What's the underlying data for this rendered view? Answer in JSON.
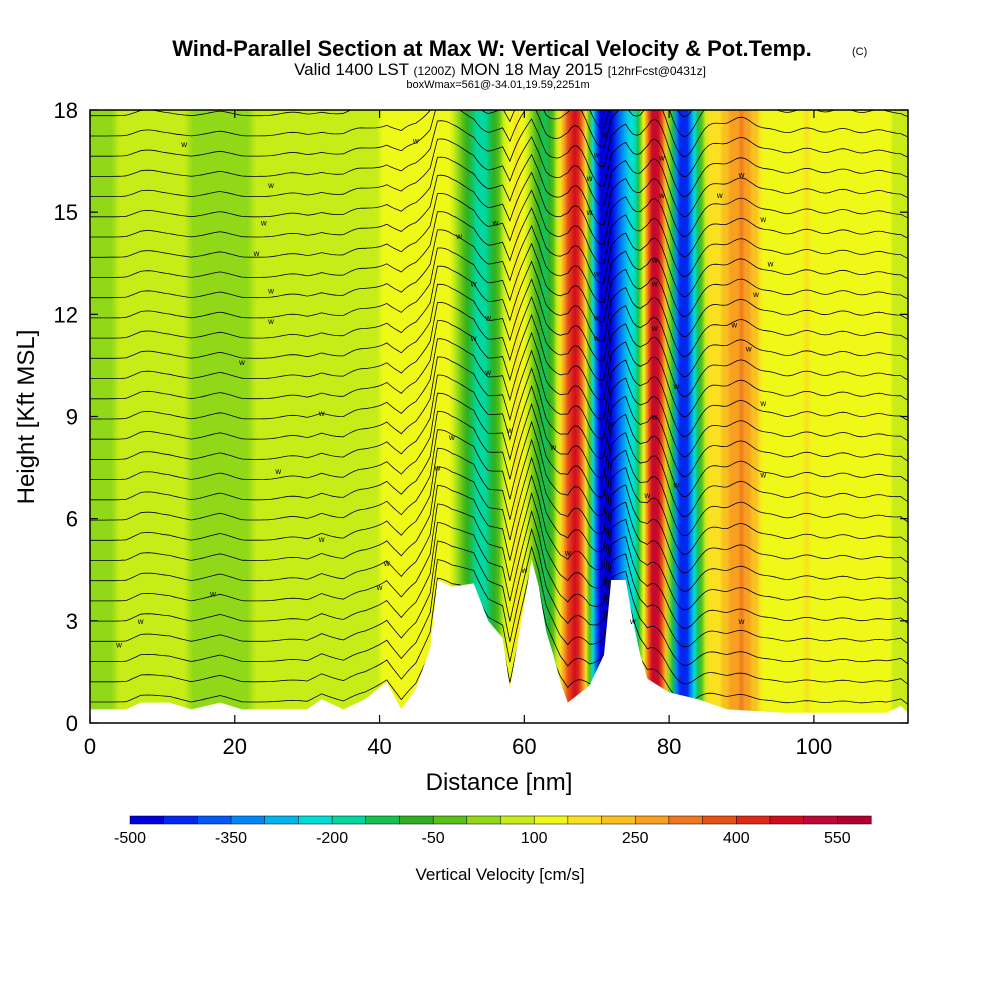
{
  "chart_data": {
    "type": "heatmap",
    "title": "Wind-Parallel Section at Max W: Vertical Velocity & Pot.Temp.",
    "title_copyright": "(C)",
    "subtitle_parts": {
      "valid": "Valid 1400 LST",
      "utc": "(1200Z)",
      "date": "MON 18 May 2015",
      "forecast": "[12hrFcst@0431z]"
    },
    "box_info": "boxWmax=561@-34.01,19.59,2251m",
    "xlabel": "Distance [nm]",
    "ylabel": "Height [Kft MSL]",
    "xlim": [
      0,
      113
    ],
    "ylim": [
      0,
      18
    ],
    "xticks": [
      0,
      20,
      40,
      60,
      80,
      100
    ],
    "yticks": [
      0,
      3,
      6,
      9,
      12,
      15,
      18
    ],
    "colorbar": {
      "label": "Vertical Velocity [cm/s]",
      "min": -500,
      "max": 600,
      "step": 50,
      "tick_values": [
        -500,
        -350,
        -200,
        -50,
        100,
        250,
        400,
        550
      ],
      "tick_labels": [
        "-500",
        "-350",
        "-200",
        "-50",
        "100",
        "250",
        "400",
        "550"
      ],
      "colors": [
        "#0000dd",
        "#0028f0",
        "#0058f8",
        "#0088f8",
        "#00b4ee",
        "#00dcd8",
        "#00d8a0",
        "#18c050",
        "#30b020",
        "#58c018",
        "#90d818",
        "#c8ec18",
        "#f0f818",
        "#fae020",
        "#f8c020",
        "#f8a020",
        "#f07820",
        "#e85018",
        "#e02818",
        "#d00c20",
        "#c00838",
        "#b00030"
      ]
    },
    "bands": [
      {
        "x": 8,
        "w": 60
      },
      {
        "x": 18,
        "w": 40
      },
      {
        "x": 28,
        "w": 60
      },
      {
        "x": 37,
        "w": 90
      },
      {
        "x": 44,
        "w": 110
      },
      {
        "x": 49,
        "w": 130
      },
      {
        "x": 54,
        "w": -170
      },
      {
        "x": 59,
        "w": 160
      },
      {
        "x": 63,
        "w": -120
      },
      {
        "x": 67,
        "w": 450
      },
      {
        "x": 71,
        "w": -500
      },
      {
        "x": 75,
        "w": -220
      },
      {
        "x": 78,
        "w": 500
      },
      {
        "x": 82,
        "w": -440
      },
      {
        "x": 86,
        "w": 180
      },
      {
        "x": 90,
        "w": 300
      },
      {
        "x": 94,
        "w": 120
      },
      {
        "x": 99,
        "w": 150
      },
      {
        "x": 104,
        "w": 140
      },
      {
        "x": 109,
        "w": 120
      }
    ],
    "terrain": [
      [
        0,
        0.4
      ],
      [
        5,
        0.4
      ],
      [
        7,
        0.6
      ],
      [
        11,
        0.6
      ],
      [
        14,
        0.4
      ],
      [
        18,
        0.6
      ],
      [
        21,
        0.4
      ],
      [
        30,
        0.4
      ],
      [
        32,
        0.7
      ],
      [
        35,
        0.4
      ],
      [
        38,
        0.7
      ],
      [
        41,
        1.2
      ],
      [
        43,
        0.4
      ],
      [
        45,
        1.0
      ],
      [
        47,
        2.2
      ],
      [
        48,
        4.2
      ],
      [
        50,
        4.0
      ],
      [
        53,
        4.1
      ],
      [
        55,
        3.0
      ],
      [
        57,
        2.5
      ],
      [
        58,
        1.0
      ],
      [
        60,
        3.5
      ],
      [
        61,
        4.8
      ],
      [
        62,
        4.0
      ],
      [
        63,
        2.7
      ],
      [
        64,
        2.0
      ],
      [
        65,
        1.2
      ],
      [
        66,
        0.6
      ],
      [
        69,
        1.1
      ],
      [
        71,
        2.0
      ],
      [
        72,
        4.2
      ],
      [
        74,
        4.2
      ],
      [
        75,
        3.0
      ],
      [
        76,
        2.0
      ],
      [
        77,
        1.3
      ],
      [
        80,
        0.9
      ],
      [
        84,
        0.7
      ],
      [
        88,
        0.4
      ],
      [
        96,
        0.3
      ],
      [
        110,
        0.3
      ],
      [
        112,
        0.5
      ],
      [
        113,
        0.3
      ]
    ],
    "isentropes": {
      "count": 31,
      "base": 0.3,
      "spacing": 0.6
    },
    "contour_labels": [
      {
        "x": 4,
        "y": 2.3,
        "text": "w"
      },
      {
        "x": 7,
        "y": 3.0,
        "text": "w"
      },
      {
        "x": 13,
        "y": 17.0,
        "text": "w"
      },
      {
        "x": 17,
        "y": 3.8,
        "text": "w"
      },
      {
        "x": 21,
        "y": 10.6,
        "text": "w"
      },
      {
        "x": 23,
        "y": 13.8,
        "text": "w"
      },
      {
        "x": 24,
        "y": 14.7,
        "text": "w"
      },
      {
        "x": 25,
        "y": 15.8,
        "text": "w"
      },
      {
        "x": 25,
        "y": 12.7,
        "text": "w"
      },
      {
        "x": 25,
        "y": 11.8,
        "text": "w"
      },
      {
        "x": 26,
        "y": 7.4,
        "text": "w"
      },
      {
        "x": 32,
        "y": 5.4,
        "text": "w"
      },
      {
        "x": 32,
        "y": 9.1,
        "text": "w"
      },
      {
        "x": 40,
        "y": 4.0,
        "text": "w"
      },
      {
        "x": 41,
        "y": 4.7,
        "text": "w"
      },
      {
        "x": 45,
        "y": 17.1,
        "text": "w"
      },
      {
        "x": 48,
        "y": 7.5,
        "text": "w"
      },
      {
        "x": 50,
        "y": 8.4,
        "text": "w"
      },
      {
        "x": 51,
        "y": 14.3,
        "text": "w"
      },
      {
        "x": 53,
        "y": 11.3,
        "text": "w"
      },
      {
        "x": 53,
        "y": 12.9,
        "text": "w"
      },
      {
        "x": 55,
        "y": 10.3,
        "text": "w"
      },
      {
        "x": 55,
        "y": 11.9,
        "text": "w"
      },
      {
        "x": 56,
        "y": 14.7,
        "text": "w"
      },
      {
        "x": 58,
        "y": 8.6,
        "text": "w"
      },
      {
        "x": 60,
        "y": 4.5,
        "text": "w"
      },
      {
        "x": 64,
        "y": 8.1,
        "text": "w"
      },
      {
        "x": 66,
        "y": 5.0,
        "text": "w"
      },
      {
        "x": 69,
        "y": 15.0,
        "text": "w"
      },
      {
        "x": 69,
        "y": 16.0,
        "text": "w"
      },
      {
        "x": 70,
        "y": 16.7,
        "text": "w"
      },
      {
        "x": 70,
        "y": 11.3,
        "text": "w"
      },
      {
        "x": 70,
        "y": 11.9,
        "text": "w"
      },
      {
        "x": 70,
        "y": 13.2,
        "text": "w"
      },
      {
        "x": 71,
        "y": 17.3,
        "text": "w"
      },
      {
        "x": 72,
        "y": 8.8,
        "text": "w"
      },
      {
        "x": 75,
        "y": 3.0,
        "text": "w"
      },
      {
        "x": 77,
        "y": 6.7,
        "text": "w"
      },
      {
        "x": 78,
        "y": 9.0,
        "text": "w"
      },
      {
        "x": 78,
        "y": 11.6,
        "text": "w"
      },
      {
        "x": 78,
        "y": 12.9,
        "text": "w"
      },
      {
        "x": 78,
        "y": 13.6,
        "text": "w"
      },
      {
        "x": 79,
        "y": 15.5,
        "text": "w"
      },
      {
        "x": 79,
        "y": 16.6,
        "text": "w"
      },
      {
        "x": 81,
        "y": 7.0,
        "text": "w"
      },
      {
        "x": 81,
        "y": 9.9,
        "text": "w"
      },
      {
        "x": 87,
        "y": 15.5,
        "text": "w"
      },
      {
        "x": 89,
        "y": 11.7,
        "text": "w"
      },
      {
        "x": 90,
        "y": 3.0,
        "text": "w"
      },
      {
        "x": 90,
        "y": 16.1,
        "text": "w"
      },
      {
        "x": 91,
        "y": 11.0,
        "text": "w"
      },
      {
        "x": 92,
        "y": 12.6,
        "text": "w"
      },
      {
        "x": 93,
        "y": 7.3,
        "text": "w"
      },
      {
        "x": 93,
        "y": 9.4,
        "text": "w"
      },
      {
        "x": 93,
        "y": 14.8,
        "text": "w"
      },
      {
        "x": 94,
        "y": 13.5,
        "text": "w"
      }
    ]
  }
}
